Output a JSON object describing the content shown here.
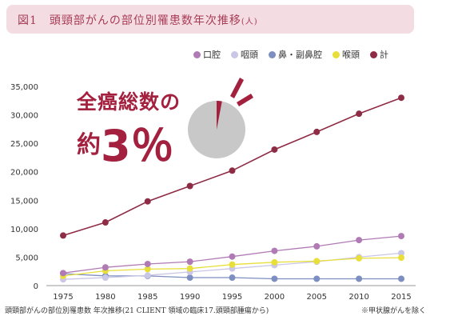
{
  "title": {
    "main": "図1　頭頸部がんの部位別罹患数年次推移",
    "suffix": "(人)"
  },
  "legend": [
    {
      "label": "口腔",
      "color": "#b07ab5"
    },
    {
      "label": "咽頭",
      "color": "#c9c6e6"
    },
    {
      "label": "鼻・副鼻腔",
      "color": "#7d8ec0"
    },
    {
      "label": "喉頭",
      "color": "#e8df3a"
    },
    {
      "label": "計",
      "color": "#8e2b45"
    }
  ],
  "callout": {
    "line1": "全癌総数の",
    "line2_lead": "約",
    "line2_big": "3％",
    "color": "#a3203f",
    "pie_share": 0.03,
    "pie_color": "#a3203f",
    "pie_rest_color": "#c8c8c8"
  },
  "caption": {
    "left": "頭頸部がんの部位別罹患数 年次推移(21 CLIENT 領域の臨床17.頭頸部腫瘍から)",
    "right": "※甲状腺がんを除く"
  },
  "chart_data": {
    "type": "line",
    "x": [
      1975,
      1980,
      1985,
      1990,
      1995,
      2000,
      2005,
      2010,
      2015
    ],
    "xticks": [
      "1975",
      "1980",
      "1985",
      "1990",
      "1995",
      "2000",
      "2005",
      "2010",
      "2015"
    ],
    "ylim": [
      0,
      35000
    ],
    "yticks": [
      0,
      5000,
      10000,
      15000,
      20000,
      25000,
      30000,
      35000
    ],
    "ytick_labels": [
      "0",
      "5,000",
      "10,000",
      "15,000",
      "20,000",
      "25,000",
      "30,000",
      "35,000"
    ],
    "grid": false,
    "legend_position": "top-right",
    "series": [
      {
        "name": "鼻・副鼻腔",
        "color": "#7d8ec0",
        "values": [
          2100,
          1700,
          1700,
          1400,
          1400,
          1200,
          1200,
          1200,
          1200
        ]
      },
      {
        "name": "咽頭",
        "color": "#c9c6e6",
        "values": [
          1100,
          1400,
          1800,
          2400,
          3000,
          3600,
          4200,
          5000,
          5700
        ]
      },
      {
        "name": "喉頭",
        "color": "#e8df3a",
        "values": [
          1700,
          2600,
          2900,
          3000,
          3700,
          4100,
          4300,
          4800,
          4900
        ]
      },
      {
        "name": "口腔",
        "color": "#b07ab5",
        "values": [
          2200,
          3200,
          3800,
          4200,
          5100,
          6100,
          6900,
          8000,
          8700
        ]
      },
      {
        "name": "計",
        "color": "#8e2b45",
        "values": [
          8800,
          11100,
          14800,
          17500,
          20200,
          23900,
          27000,
          30200,
          33000
        ]
      }
    ]
  }
}
